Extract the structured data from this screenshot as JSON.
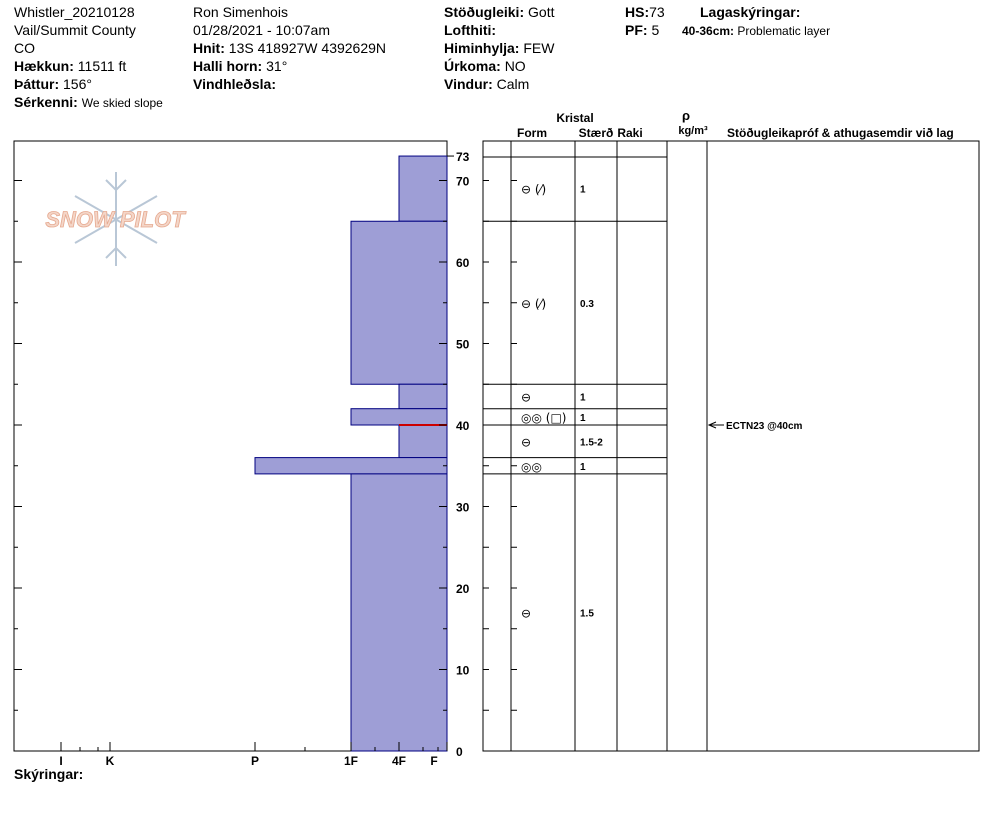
{
  "header": {
    "site": "Whistler_20210128",
    "location": "Vail/Summit County",
    "state": "CO",
    "elevation_label": "Hækkun:",
    "elevation": "11511 ft",
    "aspect_label": "Þáttur:",
    "aspect": "156°",
    "features_label": "Sérkenni:",
    "features": "We skied slope",
    "observer": "Ron Simenhois",
    "datetime": "01/28/2021 - 10:07am",
    "coords_label": "Hnit:",
    "coords": "13S 418927W 4392629N",
    "slope_label": "Halli horn:",
    "slope": "31°",
    "wind_loading_label": "Vindhleðsla:",
    "wind_loading": "",
    "stability_label": "Stöðugleiki:",
    "stability": "Gott",
    "air_temp_label": "Lofthiti:",
    "air_temp": "",
    "sky_label": "Himinhylja:",
    "sky": "FEW",
    "precip_label": "Úrkoma:",
    "precip": "NO",
    "wind_label": "Vindur:",
    "wind": "Calm",
    "hs_label": "HS:",
    "hs": "73",
    "pf_label": "PF:",
    "pf": "5",
    "layer_notes_label": "Lagaskýringar:",
    "layer_note_range": "40-36cm:",
    "layer_note_text": "Problematic layer",
    "comments_label": "Skýringar:"
  },
  "logo": {
    "text": "SNOW PILOT"
  },
  "table_headers": {
    "kristal": "Kristal",
    "form": "Form",
    "size": "Stærð",
    "moisture": "Raki",
    "rho": "ρ",
    "density_unit": "kg/m³",
    "tests": "Stöðugleikapróf & athugasemdir við lag"
  },
  "colors": {
    "layer_fill": "#9e9ed6",
    "layer_stroke": "#000080",
    "red_line": "#cc0000"
  },
  "chart_data": {
    "type": "bar",
    "orientation": "horizontal hardness profile",
    "ylabel": "",
    "ylim": [
      0,
      73
    ],
    "y_ticks": [
      0,
      10,
      20,
      30,
      40,
      50,
      60,
      70
    ],
    "y_top_label": "73",
    "hardness_ticks": [
      "I",
      "K",
      "P",
      "1F",
      "4F",
      "F"
    ],
    "layers": [
      {
        "top": 73,
        "bottom": 65,
        "hardness": "4F"
      },
      {
        "top": 65,
        "bottom": 45,
        "hardness": "1F"
      },
      {
        "top": 45,
        "bottom": 42,
        "hardness": "4F"
      },
      {
        "top": 42,
        "bottom": 40,
        "hardness": "1F"
      },
      {
        "top": 40,
        "bottom": 36,
        "hardness": "4F"
      },
      {
        "top": 36,
        "bottom": 34,
        "hardness": "P"
      },
      {
        "top": 34,
        "bottom": 0,
        "hardness": "1F"
      }
    ],
    "red_line_depth": 40,
    "crystals": [
      {
        "top": 73,
        "bottom": 65,
        "form": "⊖ (⁄)",
        "size": "1"
      },
      {
        "top": 65,
        "bottom": 45,
        "form": "⊖ (⁄)",
        "size": "0.3"
      },
      {
        "top": 45,
        "bottom": 42,
        "form": "⊖",
        "size": "1"
      },
      {
        "top": 42,
        "bottom": 40,
        "form": "◎◎ (□)",
        "size": "1"
      },
      {
        "top": 40,
        "bottom": 36,
        "form": "⊖",
        "size": "1.5-2"
      },
      {
        "top": 36,
        "bottom": 34,
        "form": "◎◎",
        "size": "1"
      },
      {
        "top": 34,
        "bottom": 0,
        "form": "⊖",
        "size": "1.5"
      }
    ],
    "tests": [
      {
        "depth": 40,
        "text": "ECTN23 @40cm"
      }
    ]
  }
}
